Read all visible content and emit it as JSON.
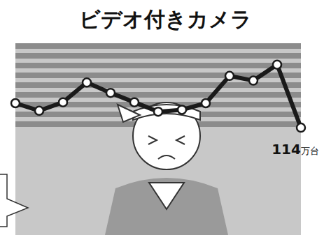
{
  "chart_data": {
    "type": "line",
    "title": "ビデオ付きカメラ",
    "categories": [
      null,
      null,
      null,
      null,
      null,
      null,
      null,
      null,
      null,
      null,
      null,
      null,
      null
    ],
    "values": [
      140,
      132,
      141,
      162,
      151,
      141,
      131,
      133,
      140,
      169,
      164,
      181,
      114
    ],
    "value_labels": [
      null,
      null,
      null,
      null,
      null,
      null,
      null,
      null,
      null,
      null,
      null,
      null,
      "114万台"
    ],
    "color": "#1a1a1a",
    "marker": "circle",
    "ylim": [
      0,
      200
    ],
    "tick_labels": false
  }
}
